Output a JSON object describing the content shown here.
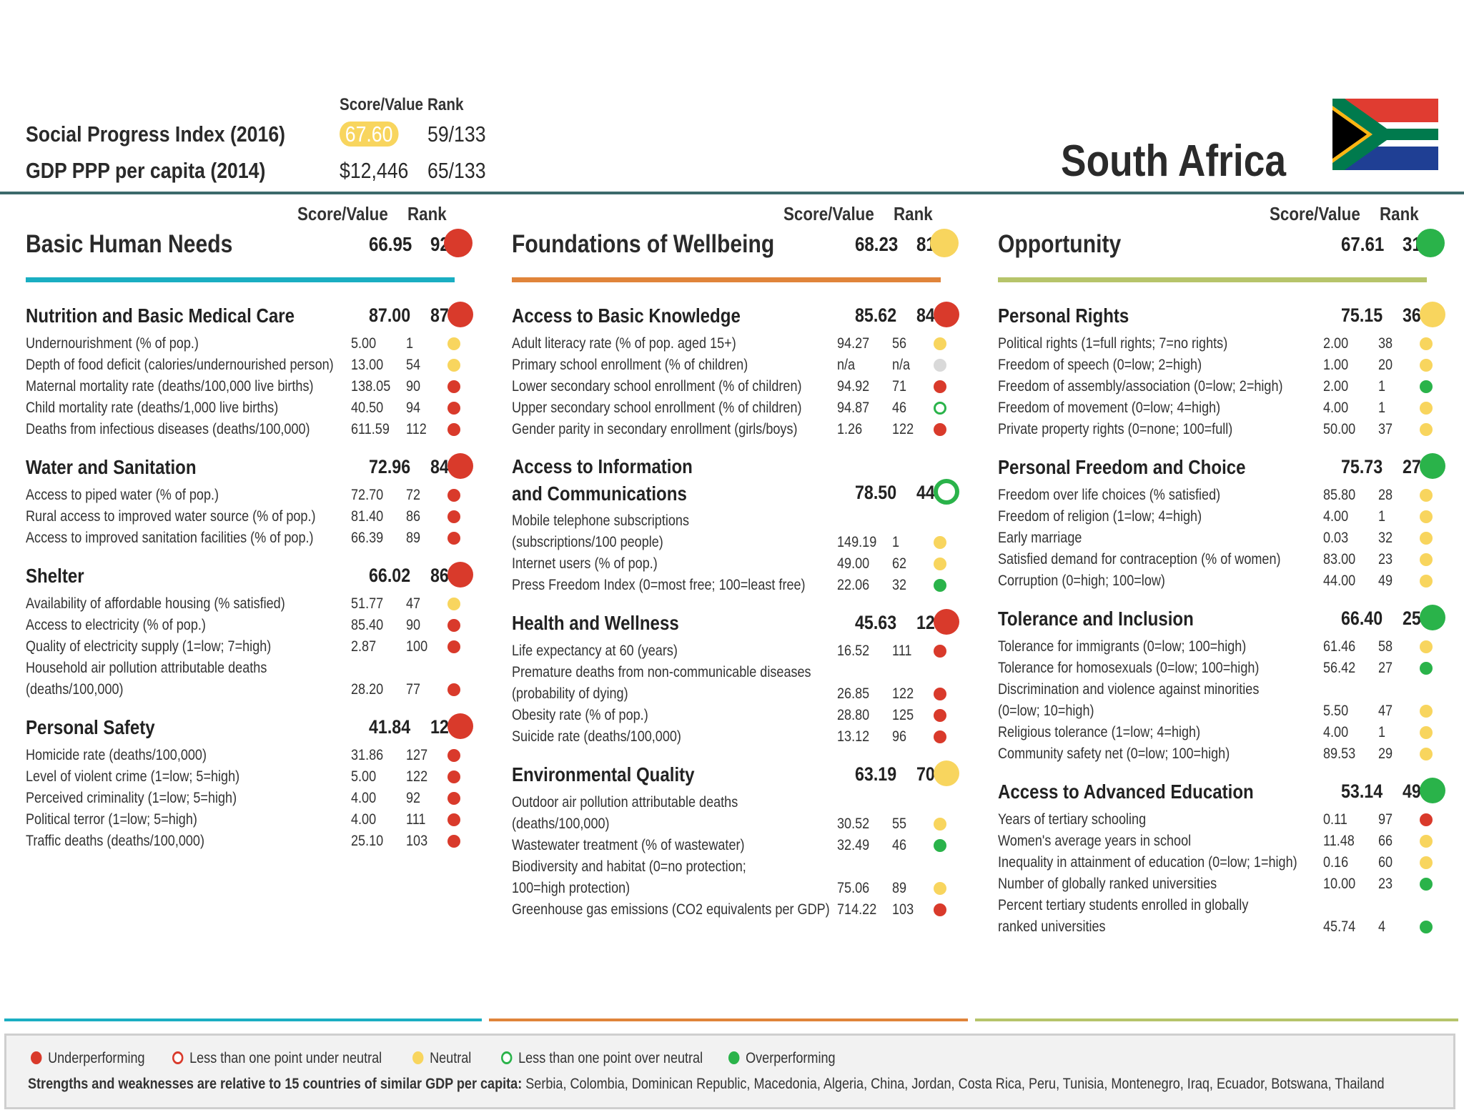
{
  "header": {
    "col_score": "Score/Value",
    "col_rank": "Rank",
    "spi_label": "Social Progress Index (2016)",
    "spi_score": "67.60",
    "spi_rank": "59/133",
    "gdp_label": "GDP PPP per capita (2014)",
    "gdp_value": "$12,446",
    "gdp_rank": "65/133",
    "country": "South Africa"
  },
  "colors": {
    "red": "#d93a2b",
    "yellow": "#f8d55e",
    "green": "#2ab34a",
    "grey": "#d9d9d9"
  },
  "columns": [
    {
      "col_score": "Score/Value",
      "col_rank": "Rank",
      "name": "Basic Human Needs",
      "score": "66.95",
      "rank": "92",
      "status": "red",
      "line_color": "#1aaec2",
      "sections": [
        {
          "name": "Nutrition and Basic Medical Care",
          "score": "87.00",
          "rank": "87",
          "status": "red",
          "rows": [
            {
              "name": "Undernourishment (% of pop.)",
              "value": "5.00",
              "rank": "1",
              "status": "yellow"
            },
            {
              "name": "Depth of food deficit (calories/undernourished person)",
              "value": "13.00",
              "rank": "54",
              "status": "yellow"
            },
            {
              "name": "Maternal mortality rate (deaths/100,000 live births)",
              "value": "138.05",
              "rank": "90",
              "status": "red"
            },
            {
              "name": "Child mortality rate (deaths/1,000 live births)",
              "value": "40.50",
              "rank": "94",
              "status": "red"
            },
            {
              "name": "Deaths from infectious diseases (deaths/100,000)",
              "value": "611.59",
              "rank": "112",
              "status": "red"
            }
          ]
        },
        {
          "name": "Water and Sanitation",
          "score": "72.96",
          "rank": "84",
          "status": "red",
          "rows": [
            {
              "name": "Access to piped water (% of pop.)",
              "value": "72.70",
              "rank": "72",
              "status": "red"
            },
            {
              "name": "Rural access to improved water source (% of pop.)",
              "value": "81.40",
              "rank": "86",
              "status": "red"
            },
            {
              "name": "Access to improved sanitation facilities (% of pop.)",
              "value": "66.39",
              "rank": "89",
              "status": "red"
            }
          ]
        },
        {
          "name": "Shelter",
          "score": "66.02",
          "rank": "86",
          "status": "red",
          "rows": [
            {
              "name": "Availability of affordable housing (% satisfied)",
              "value": "51.77",
              "rank": "47",
              "status": "yellow"
            },
            {
              "name": "Access to electricity (% of pop.)",
              "value": "85.40",
              "rank": "90",
              "status": "red"
            },
            {
              "name": "Quality of electricity supply (1=low; 7=high)",
              "value": "2.87",
              "rank": "100",
              "status": "red"
            },
            {
              "name": "Household air pollution attributable deaths",
              "value": "",
              "rank": "",
              "status": ""
            },
            {
              "name": "(deaths/100,000)",
              "value": "28.20",
              "rank": "77",
              "status": "red"
            }
          ]
        },
        {
          "name": "Personal Safety",
          "score": "41.84",
          "rank": "129",
          "status": "red",
          "rows": [
            {
              "name": "Homicide rate (deaths/100,000)",
              "value": "31.86",
              "rank": "127",
              "status": "red"
            },
            {
              "name": "Level of violent crime (1=low; 5=high)",
              "value": "5.00",
              "rank": "122",
              "status": "red"
            },
            {
              "name": "Perceived criminality (1=low; 5=high)",
              "value": "4.00",
              "rank": "92",
              "status": "red"
            },
            {
              "name": "Political terror (1=low; 5=high)",
              "value": "4.00",
              "rank": "111",
              "status": "red"
            },
            {
              "name": "Traffic deaths (deaths/100,000)",
              "value": "25.10",
              "rank": "103",
              "status": "red"
            }
          ]
        }
      ]
    },
    {
      "col_score": "Score/Value",
      "col_rank": "Rank",
      "name": "Foundations of Wellbeing",
      "score": "68.23",
      "rank": "81",
      "status": "yellow",
      "line_color": "#e0843a",
      "sections": [
        {
          "name": "Access to Basic Knowledge",
          "score": "85.62",
          "rank": "84",
          "status": "red",
          "rows": [
            {
              "name": "Adult literacy rate (% of pop. aged 15+)",
              "value": "94.27",
              "rank": "56",
              "status": "yellow"
            },
            {
              "name": "Primary school enrollment (% of children)",
              "value": "n/a",
              "rank": "n/a",
              "status": "grey"
            },
            {
              "name": "Lower secondary school enrollment (% of children)",
              "value": "94.92",
              "rank": "71",
              "status": "red"
            },
            {
              "name": "Upper secondary school enrollment (% of children)",
              "value": "94.87",
              "rank": "46",
              "status": "green-ring"
            },
            {
              "name": "Gender parity in secondary enrollment (girls/boys)",
              "value": "1.26",
              "rank": "122",
              "status": "red"
            }
          ]
        },
        {
          "name": "Access to Information and Communications",
          "score": "78.50",
          "rank": "44",
          "status": "green-ring",
          "two_line": true,
          "rows": [
            {
              "name": "Mobile telephone subscriptions",
              "value": "",
              "rank": "",
              "status": ""
            },
            {
              "name": "(subscriptions/100 people)",
              "value": "149.19",
              "rank": "1",
              "status": "yellow"
            },
            {
              "name": "Internet users (% of pop.)",
              "value": "49.00",
              "rank": "62",
              "status": "yellow"
            },
            {
              "name": "Press Freedom Index (0=most free; 100=least free)",
              "value": "22.06",
              "rank": "32",
              "status": "green"
            }
          ]
        },
        {
          "name": "Health and Wellness",
          "score": "45.63",
          "rank": "126",
          "status": "red",
          "rows": [
            {
              "name": "Life expectancy at 60 (years)",
              "value": "16.52",
              "rank": "111",
              "status": "red"
            },
            {
              "name": "Premature deaths from non-communicable diseases",
              "value": "",
              "rank": "",
              "status": ""
            },
            {
              "name": "(probability of dying)",
              "value": "26.85",
              "rank": "122",
              "status": "red"
            },
            {
              "name": "Obesity rate (% of pop.)",
              "value": "28.80",
              "rank": "125",
              "status": "red"
            },
            {
              "name": "Suicide rate (deaths/100,000)",
              "value": "13.12",
              "rank": "96",
              "status": "red"
            }
          ]
        },
        {
          "name": "Environmental Quality",
          "score": "63.19",
          "rank": "70",
          "status": "yellow",
          "rows": [
            {
              "name": "Outdoor air pollution attributable deaths",
              "value": "",
              "rank": "",
              "status": ""
            },
            {
              "name": "(deaths/100,000)",
              "value": "30.52",
              "rank": "55",
              "status": "yellow"
            },
            {
              "name": "Wastewater treatment (% of wastewater)",
              "value": "32.49",
              "rank": "46",
              "status": "green"
            },
            {
              "name": "Biodiversity and habitat (0=no protection;",
              "value": "",
              "rank": "",
              "status": ""
            },
            {
              "name": "100=high protection)",
              "value": "75.06",
              "rank": "89",
              "status": "yellow"
            },
            {
              "name": "Greenhouse gas emissions (CO2 equivalents per GDP)",
              "value": "714.22",
              "rank": "103",
              "status": "red"
            }
          ]
        }
      ]
    },
    {
      "col_score": "Score/Value",
      "col_rank": "Rank",
      "name": "Opportunity",
      "score": "67.61",
      "rank": "31",
      "status": "green",
      "line_color": "#b6c46a",
      "sections": [
        {
          "name": "Personal Rights",
          "score": "75.15",
          "rank": "36",
          "status": "yellow",
          "rows": [
            {
              "name": "Political rights (1=full rights; 7=no rights)",
              "value": "2.00",
              "rank": "38",
              "status": "yellow"
            },
            {
              "name": "Freedom of speech (0=low; 2=high)",
              "value": "1.00",
              "rank": "20",
              "status": "yellow"
            },
            {
              "name": "Freedom of assembly/association (0=low; 2=high)",
              "value": "2.00",
              "rank": "1",
              "status": "green"
            },
            {
              "name": "Freedom of movement (0=low; 4=high)",
              "value": "4.00",
              "rank": "1",
              "status": "yellow"
            },
            {
              "name": "Private property rights (0=none; 100=full)",
              "value": "50.00",
              "rank": "37",
              "status": "yellow"
            }
          ]
        },
        {
          "name": "Personal Freedom and Choice",
          "score": "75.73",
          "rank": "27",
          "status": "green",
          "rows": [
            {
              "name": "Freedom over life choices (% satisfied)",
              "value": "85.80",
              "rank": "28",
              "status": "yellow"
            },
            {
              "name": "Freedom of religion (1=low; 4=high)",
              "value": "4.00",
              "rank": "1",
              "status": "yellow"
            },
            {
              "name": "Early marriage",
              "value": "0.03",
              "rank": "32",
              "status": "yellow"
            },
            {
              "name": "Satisfied demand for contraception (% of women)",
              "value": "83.00",
              "rank": "23",
              "status": "yellow"
            },
            {
              "name": "Corruption (0=high; 100=low)",
              "value": "44.00",
              "rank": "49",
              "status": "yellow"
            }
          ]
        },
        {
          "name": "Tolerance and Inclusion",
          "score": "66.40",
          "rank": "25",
          "status": "green",
          "rows": [
            {
              "name": "Tolerance for immigrants (0=low; 100=high)",
              "value": "61.46",
              "rank": "58",
              "status": "yellow"
            },
            {
              "name": "Tolerance for homosexuals (0=low; 100=high)",
              "value": "56.42",
              "rank": "27",
              "status": "green"
            },
            {
              "name": "Discrimination and violence against minorities",
              "value": "",
              "rank": "",
              "status": ""
            },
            {
              "name": "(0=low; 10=high)",
              "value": "5.50",
              "rank": "47",
              "status": "yellow"
            },
            {
              "name": "Religious tolerance (1=low; 4=high)",
              "value": "4.00",
              "rank": "1",
              "status": "yellow"
            },
            {
              "name": "Community safety net (0=low; 100=high)",
              "value": "89.53",
              "rank": "29",
              "status": "yellow"
            }
          ]
        },
        {
          "name": "Access to Advanced Education",
          "score": "53.14",
          "rank": "49",
          "status": "green",
          "rows": [
            {
              "name": "Years of tertiary schooling",
              "value": "0.11",
              "rank": "97",
              "status": "red"
            },
            {
              "name": "Women's average years in school",
              "value": "11.48",
              "rank": "66",
              "status": "yellow"
            },
            {
              "name": "Inequality in attainment of education (0=low; 1=high)",
              "value": "0.16",
              "rank": "60",
              "status": "yellow"
            },
            {
              "name": "Number of globally ranked universities",
              "value": "10.00",
              "rank": "23",
              "status": "green"
            },
            {
              "name": "Percent tertiary students enrolled in globally",
              "value": "",
              "rank": "",
              "status": ""
            },
            {
              "name": "ranked universities",
              "value": "45.74",
              "rank": "4",
              "status": "green"
            }
          ]
        }
      ]
    }
  ],
  "legend": {
    "underperforming": "Underperforming",
    "less_under": "Less than one point under neutral",
    "neutral": "Neutral",
    "less_over": "Less than one point over neutral",
    "overperforming": "Overperforming",
    "note_bold": "Strengths and weaknesses are relative to 15 countries of similar GDP per capita:",
    "note_countries": " Serbia, Colombia, Dominican Republic, Macedonia, Algeria, China, Jordan, Costa Rica, Peru, Tunisia, Montenegro, Iraq, Ecuador, Botswana, Thailand"
  }
}
